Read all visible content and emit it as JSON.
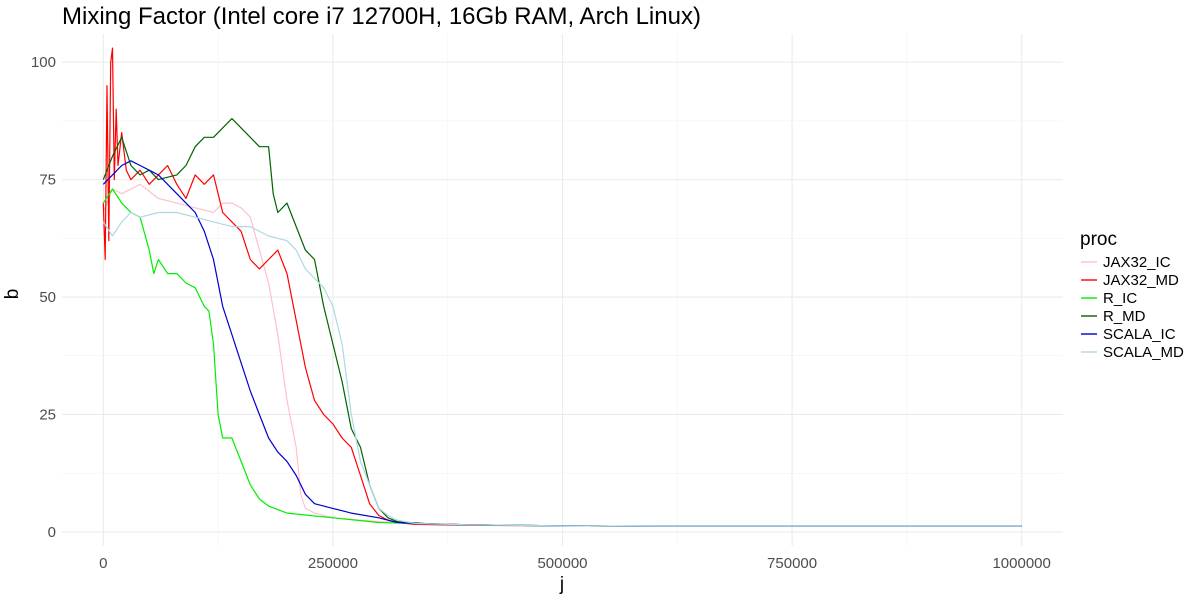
{
  "chart_data": {
    "type": "line",
    "title": "Mixing Factor (Intel core i7 12700H, 16Gb RAM, Arch Linux)",
    "xlabel": "j",
    "ylabel": "b",
    "xlim": [
      -45000,
      1045000
    ],
    "ylim": [
      -3,
      106
    ],
    "x_ticks": [
      0,
      250000,
      500000,
      750000,
      1000000
    ],
    "x_tick_labels": [
      "0",
      "250000",
      "500000",
      "750000",
      "1000000"
    ],
    "y_ticks": [
      0,
      25,
      50,
      75,
      100
    ],
    "y_tick_labels": [
      "0",
      "25",
      "50",
      "75",
      "100"
    ],
    "grid": true,
    "legend": {
      "title": "proc",
      "position": "right"
    },
    "series": [
      {
        "name": "JAX32_IC",
        "color": "#ffc0cb",
        "x": [
          0,
          10000,
          20000,
          40000,
          60000,
          80000,
          100000,
          120000,
          130000,
          140000,
          150000,
          160000,
          170000,
          180000,
          190000,
          200000,
          210000,
          215000,
          220000,
          230000,
          250000,
          300000,
          340000,
          400000,
          500000,
          600000,
          800000,
          1000000
        ],
        "y": [
          68,
          73,
          72,
          74,
          71,
          70,
          69,
          68,
          70,
          70,
          69,
          67,
          60,
          53,
          42,
          28,
          18,
          8,
          5,
          4,
          3,
          2.2,
          1.8,
          1.5,
          1.3,
          1.2,
          1.2,
          1.2
        ]
      },
      {
        "name": "JAX32_MD",
        "color": "#ff0000",
        "x": [
          0,
          2000,
          4000,
          6000,
          8000,
          10000,
          12000,
          14000,
          16000,
          20000,
          25000,
          30000,
          40000,
          50000,
          60000,
          70000,
          80000,
          90000,
          100000,
          110000,
          120000,
          130000,
          140000,
          150000,
          160000,
          170000,
          180000,
          190000,
          200000,
          210000,
          220000,
          230000,
          240000,
          250000,
          260000,
          270000,
          280000,
          290000,
          300000,
          310000,
          320000,
          340000,
          400000,
          500000,
          600000,
          800000,
          1000000
        ],
        "y": [
          70,
          58,
          95,
          62,
          100,
          103,
          75,
          90,
          78,
          85,
          77,
          75,
          77,
          74,
          76,
          78,
          74,
          71,
          76,
          74,
          76,
          68,
          66,
          64,
          58,
          56,
          58,
          60,
          55,
          45,
          35,
          28,
          25,
          23,
          20,
          18,
          12,
          6,
          3.5,
          2.5,
          2,
          1.6,
          1.4,
          1.3,
          1.2,
          1.2,
          1.2
        ]
      },
      {
        "name": "R_IC",
        "color": "#00ee00",
        "x": [
          0,
          10000,
          20000,
          30000,
          40000,
          50000,
          55000,
          60000,
          70000,
          80000,
          90000,
          100000,
          110000,
          115000,
          120000,
          125000,
          130000,
          140000,
          150000,
          160000,
          170000,
          180000,
          200000,
          250000,
          300000,
          400000,
          500000,
          600000,
          800000,
          1000000
        ],
        "y": [
          70,
          73,
          70,
          68,
          67,
          60,
          55,
          58,
          55,
          55,
          53,
          52,
          48,
          47,
          40,
          25,
          20,
          20,
          15,
          10,
          7,
          5.5,
          4,
          3,
          2,
          1.5,
          1.3,
          1.2,
          1.2,
          1.2
        ]
      },
      {
        "name": "R_MD",
        "color": "#006400",
        "x": [
          0,
          10000,
          20000,
          30000,
          40000,
          50000,
          60000,
          80000,
          90000,
          100000,
          110000,
          120000,
          130000,
          140000,
          150000,
          160000,
          170000,
          180000,
          185000,
          190000,
          200000,
          210000,
          220000,
          230000,
          240000,
          250000,
          260000,
          270000,
          280000,
          290000,
          300000,
          310000,
          320000,
          350000,
          400000,
          500000,
          600000,
          800000,
          1000000
        ],
        "y": [
          75,
          80,
          84,
          78,
          76,
          77,
          75,
          76,
          78,
          82,
          84,
          84,
          86,
          88,
          86,
          84,
          82,
          82,
          72,
          68,
          70,
          65,
          60,
          58,
          48,
          40,
          32,
          22,
          18,
          10,
          5,
          3,
          2.2,
          1.8,
          1.5,
          1.3,
          1.2,
          1.2,
          1.2
        ]
      },
      {
        "name": "SCALA_IC",
        "color": "#0000cd",
        "x": [
          0,
          10000,
          20000,
          30000,
          40000,
          50000,
          60000,
          70000,
          80000,
          90000,
          100000,
          110000,
          120000,
          130000,
          140000,
          150000,
          160000,
          170000,
          180000,
          190000,
          200000,
          210000,
          220000,
          230000,
          250000,
          270000,
          300000,
          320000,
          350000,
          400000,
          500000,
          600000,
          800000,
          1000000
        ],
        "y": [
          74,
          76,
          78,
          79,
          78,
          77,
          76,
          74,
          72,
          70,
          68,
          64,
          58,
          48,
          42,
          36,
          30,
          25,
          20,
          17,
          15,
          12,
          8,
          6,
          5,
          4,
          3,
          2,
          1.7,
          1.5,
          1.3,
          1.2,
          1.2,
          1.2
        ]
      },
      {
        "name": "SCALA_MD",
        "color": "#add8e6",
        "x": [
          0,
          10000,
          20000,
          30000,
          40000,
          60000,
          80000,
          100000,
          120000,
          140000,
          160000,
          180000,
          200000,
          210000,
          220000,
          230000,
          240000,
          250000,
          260000,
          270000,
          280000,
          290000,
          300000,
          310000,
          320000,
          340000,
          400000,
          500000,
          600000,
          800000,
          1000000
        ],
        "y": [
          66,
          63,
          66,
          68,
          67,
          68,
          68,
          67,
          66,
          65,
          65,
          63,
          62,
          60,
          56,
          54,
          52,
          48,
          40,
          25,
          15,
          10,
          5,
          3.5,
          2.5,
          1.8,
          1.5,
          1.3,
          1.2,
          1.2,
          1.2
        ]
      }
    ]
  }
}
